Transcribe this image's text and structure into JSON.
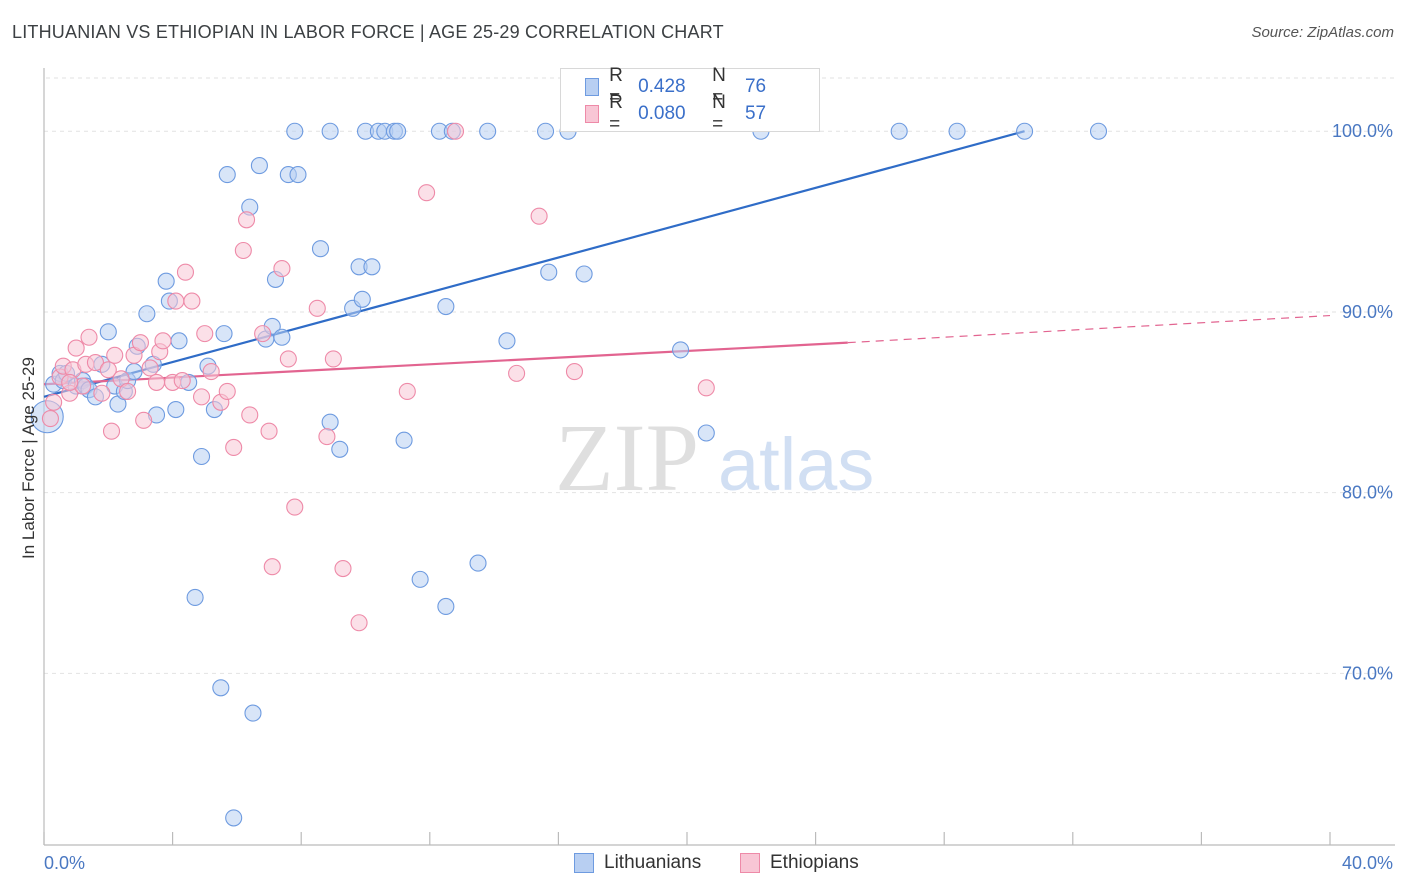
{
  "header": {
    "title": "LITHUANIAN VS ETHIOPIAN IN LABOR FORCE | AGE 25-29 CORRELATION CHART",
    "source": "Source: ZipAtlas.com"
  },
  "watermark": {
    "zip": "ZIP",
    "atlas": "atlas"
  },
  "legend": {
    "rows": [
      {
        "r_label": "R =",
        "r_value": "0.428",
        "n_label": "N =",
        "n_value": "76",
        "color": "#6e9be0",
        "fill": "#b8cff2"
      },
      {
        "r_label": "R =",
        "r_value": "0.080",
        "n_label": "N =",
        "n_value": "57",
        "color": "#ee8aa8",
        "fill": "#f8c6d5"
      }
    ]
  },
  "bottom_legend": {
    "items": [
      {
        "label": "Lithuanians",
        "color": "#6e9be0",
        "fill": "#b8cff2"
      },
      {
        "label": "Ethiopians",
        "color": "#ee8aa8",
        "fill": "#f8c6d5"
      }
    ]
  },
  "chart_data": {
    "type": "scatter",
    "title": "LITHUANIAN VS ETHIOPIAN IN LABOR FORCE | AGE 25-29 CORRELATION CHART",
    "xlabel": "",
    "ylabel": "In Labor Force | Age 25-29",
    "xlim": [
      0,
      40
    ],
    "ylim": [
      60.5,
      103.5
    ],
    "x_tick_labels": [
      {
        "value": 0,
        "label": "0.0%"
      },
      {
        "value": 40,
        "label": "40.0%"
      }
    ],
    "y_ticks": [
      {
        "value": 100,
        "label": "100.0%"
      },
      {
        "value": 90,
        "label": "90.0%"
      },
      {
        "value": 80,
        "label": "80.0%"
      },
      {
        "value": 70,
        "label": "70.0%"
      }
    ],
    "grid": true,
    "legend_position": "top-center",
    "series": [
      {
        "name": "Lithuanians",
        "color": "#6e9be0",
        "fill": "#b8cff2",
        "points": [
          [
            0.1,
            84.2
          ],
          [
            0.3,
            86.0
          ],
          [
            0.5,
            86.6
          ],
          [
            0.6,
            86.2
          ],
          [
            0.7,
            86.6
          ],
          [
            1.0,
            85.9
          ],
          [
            1.2,
            86.2
          ],
          [
            1.3,
            85.9
          ],
          [
            1.4,
            85.7
          ],
          [
            1.6,
            85.3
          ],
          [
            1.8,
            87.1
          ],
          [
            2.0,
            88.9
          ],
          [
            2.2,
            85.9
          ],
          [
            2.3,
            84.9
          ],
          [
            2.5,
            85.6
          ],
          [
            2.6,
            86.2
          ],
          [
            2.8,
            86.7
          ],
          [
            2.9,
            88.1
          ],
          [
            3.2,
            89.9
          ],
          [
            3.4,
            87.1
          ],
          [
            3.5,
            84.3
          ],
          [
            3.8,
            91.7
          ],
          [
            3.9,
            90.6
          ],
          [
            4.1,
            84.6
          ],
          [
            4.2,
            88.4
          ],
          [
            4.5,
            86.1
          ],
          [
            4.7,
            74.2
          ],
          [
            4.9,
            82.0
          ],
          [
            5.1,
            87.0
          ],
          [
            5.3,
            84.6
          ],
          [
            5.5,
            69.2
          ],
          [
            5.6,
            88.8
          ],
          [
            5.7,
            97.6
          ],
          [
            5.9,
            62.0
          ],
          [
            6.4,
            95.8
          ],
          [
            6.5,
            67.8
          ],
          [
            6.7,
            98.1
          ],
          [
            6.9,
            88.5
          ],
          [
            7.1,
            89.2
          ],
          [
            7.2,
            91.8
          ],
          [
            7.4,
            88.6
          ],
          [
            7.6,
            97.6
          ],
          [
            7.8,
            100.0
          ],
          [
            7.9,
            97.6
          ],
          [
            8.6,
            93.5
          ],
          [
            8.9,
            100.0
          ],
          [
            8.9,
            83.9
          ],
          [
            9.2,
            82.4
          ],
          [
            9.6,
            90.2
          ],
          [
            9.8,
            92.5
          ],
          [
            9.9,
            90.7
          ],
          [
            10.0,
            100.0
          ],
          [
            10.2,
            92.5
          ],
          [
            10.4,
            100.0
          ],
          [
            10.6,
            100.0
          ],
          [
            10.9,
            100.0
          ],
          [
            11.0,
            100.0
          ],
          [
            11.2,
            82.9
          ],
          [
            11.7,
            75.2
          ],
          [
            12.3,
            100.0
          ],
          [
            12.5,
            73.7
          ],
          [
            12.5,
            90.3
          ],
          [
            12.7,
            100.0
          ],
          [
            13.5,
            76.1
          ],
          [
            13.8,
            100.0
          ],
          [
            14.4,
            88.4
          ],
          [
            15.6,
            100.0
          ],
          [
            15.7,
            92.2
          ],
          [
            16.3,
            100.0
          ],
          [
            16.8,
            92.1
          ],
          [
            19.8,
            87.9
          ],
          [
            20.6,
            83.3
          ],
          [
            22.3,
            100.0
          ],
          [
            26.6,
            100.0
          ],
          [
            28.4,
            100.0
          ],
          [
            30.5,
            100.0
          ],
          [
            32.8,
            100.0
          ]
        ],
        "trend_line": {
          "x_start": 0,
          "y_start": 85.3,
          "x_end": 30.5,
          "y_end": 100.0
        }
      },
      {
        "name": "Ethiopians",
        "color": "#ee8aa8",
        "fill": "#f8c6d5",
        "points": [
          [
            0.2,
            84.1
          ],
          [
            0.3,
            85.0
          ],
          [
            0.5,
            86.4
          ],
          [
            0.6,
            87.0
          ],
          [
            0.8,
            85.5
          ],
          [
            0.9,
            86.8
          ],
          [
            1.0,
            88.0
          ],
          [
            1.2,
            85.9
          ],
          [
            1.3,
            87.1
          ],
          [
            1.4,
            88.6
          ],
          [
            1.6,
            87.2
          ],
          [
            1.8,
            85.5
          ],
          [
            2.0,
            86.8
          ],
          [
            2.1,
            83.4
          ],
          [
            2.2,
            87.6
          ],
          [
            2.4,
            86.3
          ],
          [
            2.6,
            85.6
          ],
          [
            2.8,
            87.6
          ],
          [
            3.0,
            88.3
          ],
          [
            3.1,
            84.0
          ],
          [
            3.3,
            86.9
          ],
          [
            3.5,
            86.1
          ],
          [
            3.6,
            87.8
          ],
          [
            3.7,
            88.4
          ],
          [
            4.0,
            86.1
          ],
          [
            4.1,
            90.6
          ],
          [
            4.3,
            86.2
          ],
          [
            4.4,
            92.2
          ],
          [
            4.6,
            90.6
          ],
          [
            4.9,
            85.3
          ],
          [
            5.0,
            88.8
          ],
          [
            5.2,
            86.7
          ],
          [
            5.5,
            85.0
          ],
          [
            5.7,
            85.6
          ],
          [
            5.9,
            82.5
          ],
          [
            6.2,
            93.4
          ],
          [
            6.3,
            95.1
          ],
          [
            6.4,
            84.3
          ],
          [
            6.8,
            88.8
          ],
          [
            7.0,
            83.4
          ],
          [
            7.1,
            75.9
          ],
          [
            7.4,
            92.4
          ],
          [
            7.6,
            87.4
          ],
          [
            7.8,
            79.2
          ],
          [
            8.5,
            90.2
          ],
          [
            8.8,
            83.1
          ],
          [
            9.0,
            87.4
          ],
          [
            9.3,
            75.8
          ],
          [
            9.8,
            72.8
          ],
          [
            11.3,
            85.6
          ],
          [
            11.9,
            96.6
          ],
          [
            12.8,
            100.0
          ],
          [
            14.7,
            86.6
          ],
          [
            15.4,
            95.3
          ],
          [
            16.5,
            86.7
          ],
          [
            20.6,
            85.8
          ],
          [
            0.8,
            86.1
          ]
        ],
        "trend_line": {
          "x_start": 0,
          "y_start": 86.0,
          "x_end": 25.0,
          "y_end": 88.3
        },
        "trend_extension": {
          "x_end": 40,
          "y_end": 89.8
        }
      }
    ]
  }
}
